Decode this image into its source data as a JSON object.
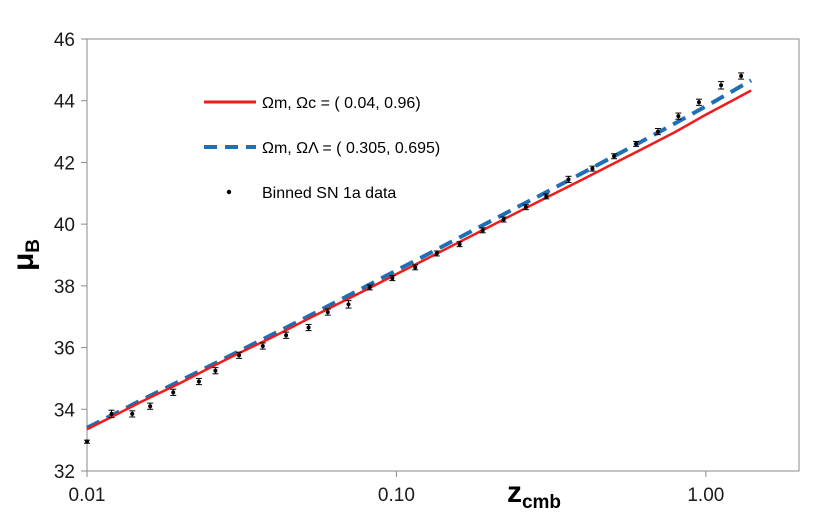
{
  "chart_data": {
    "type": "scatter",
    "xscale": "log",
    "xlim": [
      0.01,
      2.0
    ],
    "ylim": [
      32,
      46
    ],
    "x_ticks": [
      {
        "value": 0.01,
        "label": "0.01"
      },
      {
        "value": 0.1,
        "label": "0.10"
      },
      {
        "value": 1.0,
        "label": "1.00"
      }
    ],
    "y_ticks": [
      {
        "value": 32,
        "label": "32"
      },
      {
        "value": 34,
        "label": "34"
      },
      {
        "value": 36,
        "label": "36"
      },
      {
        "value": 38,
        "label": "38"
      },
      {
        "value": 40,
        "label": "40"
      },
      {
        "value": 42,
        "label": "42"
      },
      {
        "value": 44,
        "label": "44"
      },
      {
        "value": 46,
        "label": "46"
      }
    ],
    "xlabel": {
      "main": "z",
      "sub": "cmb"
    },
    "ylabel": {
      "main": "μ",
      "sub": "B"
    },
    "grid": false,
    "series": [
      {
        "name": "Ωm, Ωc = ( 0.04, 0.96)",
        "kind": "line",
        "style": "solid",
        "color": "#ee1c1c",
        "x": [
          0.01,
          0.012,
          0.015,
          0.02,
          0.025,
          0.03,
          0.04,
          0.05,
          0.06,
          0.08,
          0.1,
          0.12,
          0.15,
          0.2,
          0.25,
          0.3,
          0.4,
          0.5,
          0.6,
          0.8,
          1.0,
          1.2,
          1.4
        ],
        "y": [
          33.35,
          33.75,
          34.25,
          34.85,
          35.35,
          35.75,
          36.35,
          36.85,
          37.25,
          37.88,
          38.38,
          38.78,
          39.28,
          39.92,
          40.42,
          40.82,
          41.45,
          41.95,
          42.35,
          43.0,
          43.55,
          43.97,
          44.33
        ]
      },
      {
        "name": "Ωm, ΩΛ = ( 0.305, 0.695)",
        "kind": "line",
        "style": "dashed",
        "color": "#1f6fb5",
        "x": [
          0.01,
          0.012,
          0.015,
          0.02,
          0.025,
          0.03,
          0.04,
          0.05,
          0.06,
          0.08,
          0.1,
          0.12,
          0.15,
          0.2,
          0.25,
          0.3,
          0.4,
          0.5,
          0.6,
          0.8,
          1.0,
          1.2,
          1.4
        ],
        "y": [
          33.4,
          33.8,
          34.3,
          34.92,
          35.41,
          35.81,
          36.44,
          36.93,
          37.34,
          37.99,
          38.5,
          38.91,
          39.42,
          40.08,
          40.59,
          41.0,
          41.66,
          42.18,
          42.6,
          43.28,
          43.82,
          44.27,
          44.66
        ]
      },
      {
        "name": "Binned SN 1a data",
        "kind": "points",
        "color": "#000000",
        "x": [
          0.01,
          0.012,
          0.014,
          0.016,
          0.019,
          0.023,
          0.026,
          0.031,
          0.037,
          0.044,
          0.052,
          0.06,
          0.07,
          0.082,
          0.097,
          0.115,
          0.135,
          0.16,
          0.19,
          0.222,
          0.262,
          0.305,
          0.36,
          0.43,
          0.505,
          0.595,
          0.7,
          0.815,
          0.95,
          1.12,
          1.3
        ],
        "y": [
          32.95,
          33.85,
          33.85,
          34.1,
          34.55,
          34.9,
          35.25,
          35.75,
          36.05,
          36.4,
          36.65,
          37.15,
          37.4,
          37.95,
          38.25,
          38.6,
          39.05,
          39.35,
          39.8,
          40.15,
          40.55,
          40.9,
          41.45,
          41.8,
          42.2,
          42.6,
          43.0,
          43.5,
          43.95,
          44.5,
          44.8
        ],
        "err": [
          0.05,
          0.12,
          0.1,
          0.1,
          0.1,
          0.1,
          0.1,
          0.1,
          0.1,
          0.1,
          0.1,
          0.1,
          0.12,
          0.08,
          0.08,
          0.08,
          0.08,
          0.08,
          0.08,
          0.08,
          0.08,
          0.08,
          0.1,
          0.08,
          0.08,
          0.08,
          0.1,
          0.1,
          0.1,
          0.12,
          0.1
        ]
      }
    ],
    "legend_position": "upper-left"
  }
}
